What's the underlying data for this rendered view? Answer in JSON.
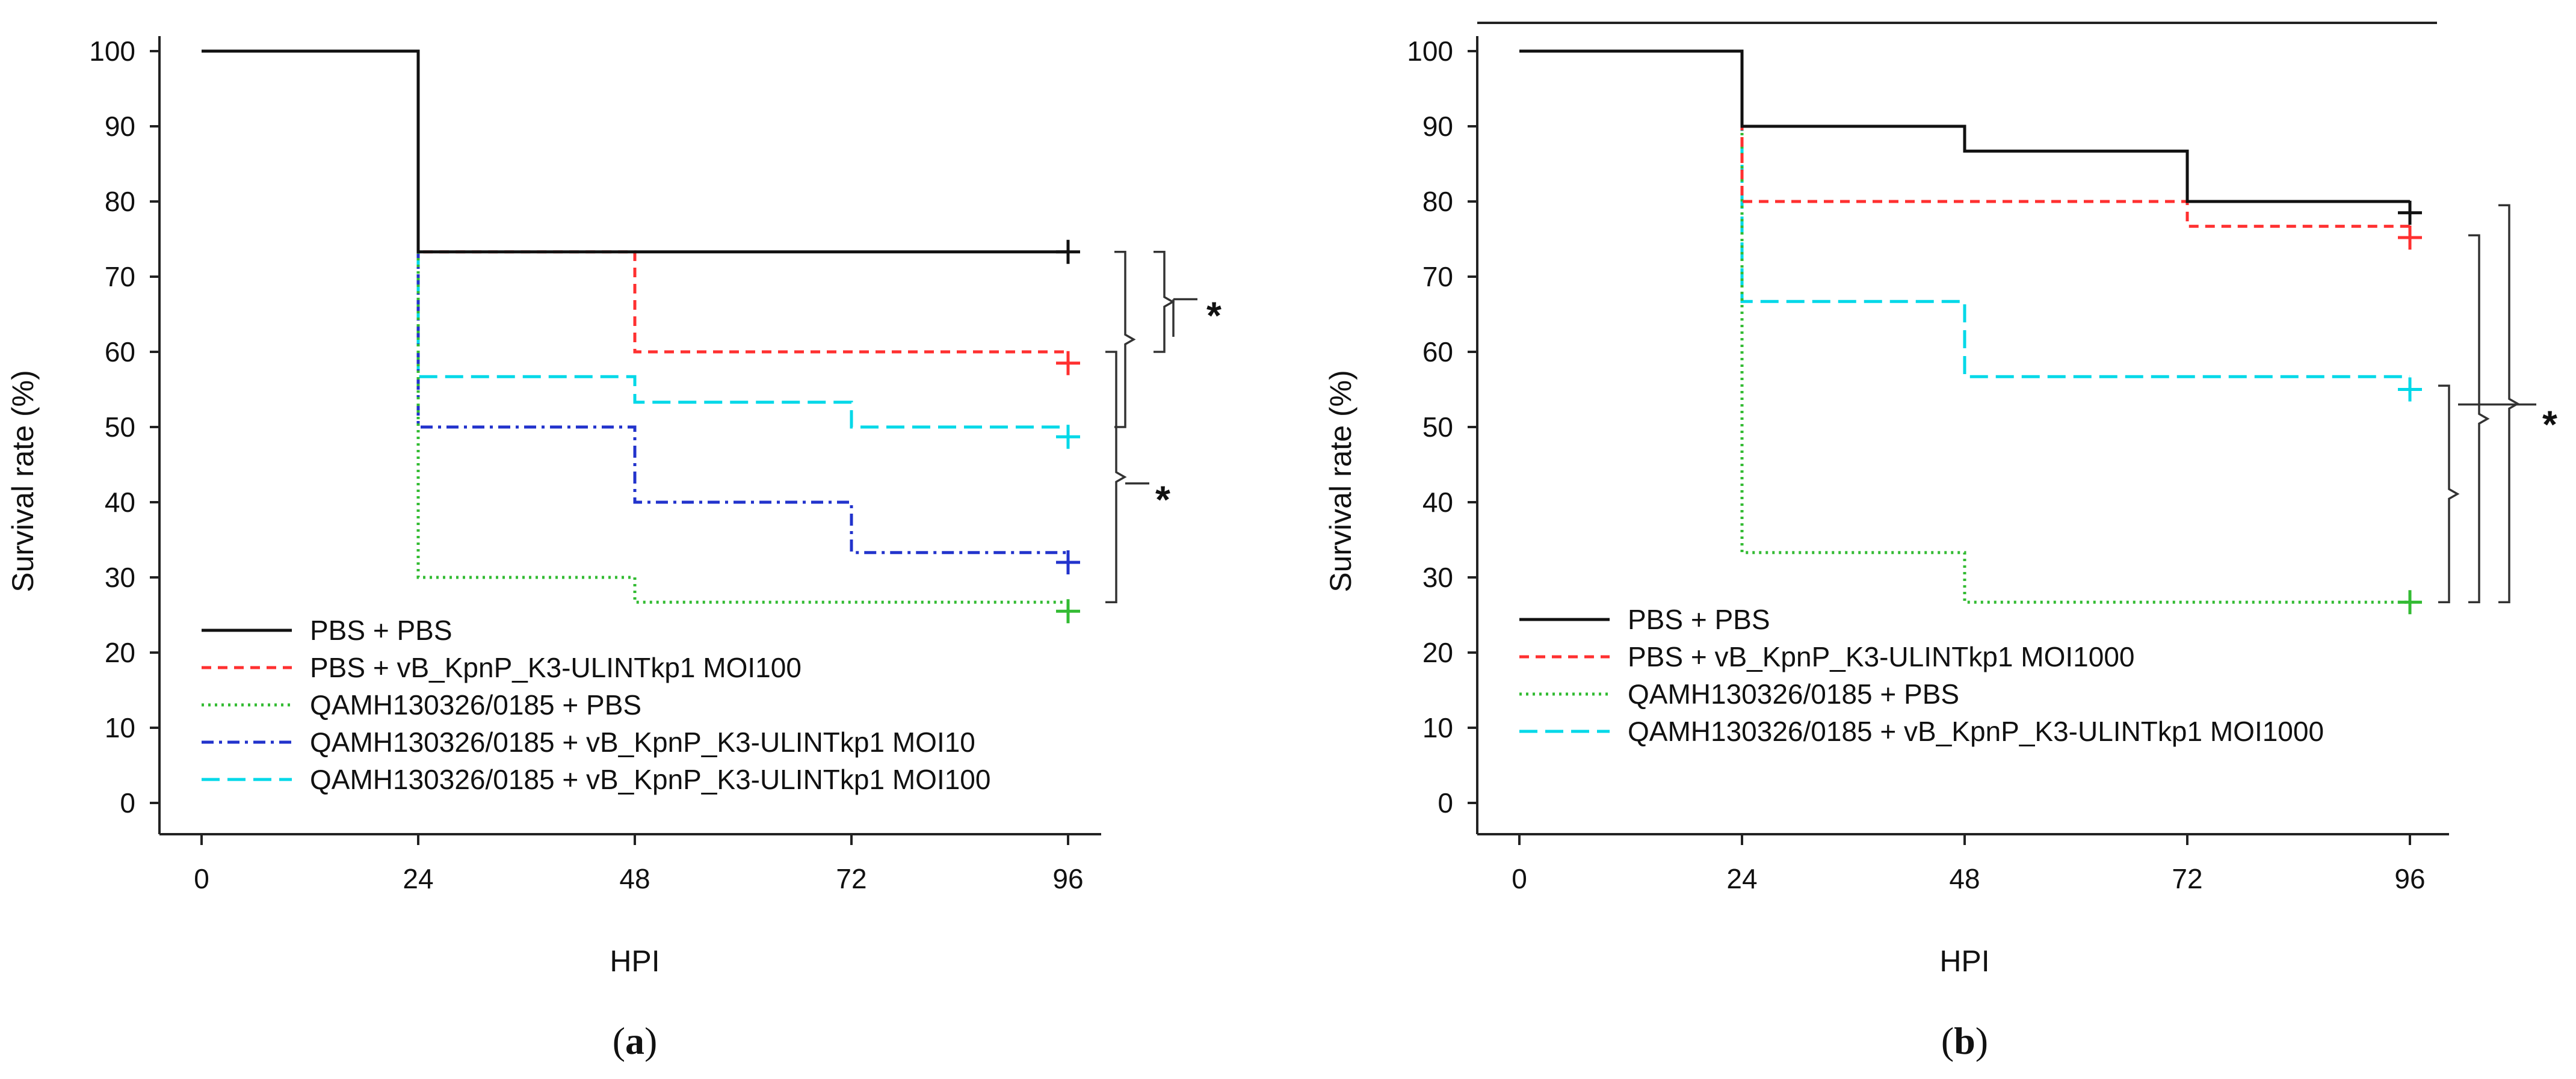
{
  "chart_data": [
    {
      "type": "line",
      "step": true,
      "panel_label_prefix": "(",
      "panel_label_letter": "a",
      "panel_label_suffix": ")",
      "xlabel": "HPI",
      "ylabel": "Survival rate (%)",
      "xticks": [
        0,
        24,
        48,
        72,
        96
      ],
      "yticks": [
        0,
        10,
        20,
        30,
        40,
        50,
        60,
        70,
        80,
        90,
        100
      ],
      "xlim": [
        0,
        96
      ],
      "ylim": [
        0,
        100
      ],
      "significance": [
        "*",
        "*"
      ],
      "series": [
        {
          "name": "PBS + PBS",
          "color": "#111111",
          "dash": "solid",
          "x": [
            0,
            24,
            96
          ],
          "y": [
            100,
            73.3,
            73.3
          ],
          "censor_y": 73.3
        },
        {
          "name": "PBS + vB_KpnP_K3-ULINTkp1 MOI100",
          "color": "#ff3030",
          "dash": "dashed",
          "x": [
            0,
            24,
            48,
            96
          ],
          "y": [
            100,
            73.3,
            60,
            60
          ],
          "censor_y": 58.5
        },
        {
          "name": "QAMH130326/0185 + PBS",
          "color": "#33bb33",
          "dash": "dotted",
          "x": [
            0,
            24,
            48,
            96
          ],
          "y": [
            100,
            30,
            26.7,
            26.7
          ],
          "censor_y": 25.5
        },
        {
          "name": "QAMH130326/0185 + vB_KpnP_K3-ULINTkp1 MOI10",
          "color": "#2233cc",
          "dash": "dashdot",
          "x": [
            0,
            24,
            48,
            72,
            96
          ],
          "y": [
            100,
            50,
            40,
            33.3,
            33.3
          ],
          "censor_y": 32
        },
        {
          "name": "QAMH130326/0185 + vB_KpnP_K3-ULINTkp1 MOI100",
          "color": "#00d8e8",
          "dash": "longdash",
          "x": [
            0,
            24,
            48,
            72,
            96
          ],
          "y": [
            100,
            56.7,
            53.3,
            50,
            50
          ],
          "censor_y": 48.7
        }
      ]
    },
    {
      "type": "line",
      "step": true,
      "panel_label_prefix": "(",
      "panel_label_letter": "b",
      "panel_label_suffix": ")",
      "xlabel": "HPI",
      "ylabel": "Survival rate (%)",
      "xticks": [
        0,
        24,
        48,
        72,
        96
      ],
      "yticks": [
        0,
        10,
        20,
        30,
        40,
        50,
        60,
        70,
        80,
        90,
        100
      ],
      "xlim": [
        0,
        96
      ],
      "ylim": [
        0,
        100
      ],
      "significance": [
        "*"
      ],
      "series": [
        {
          "name": "PBS + PBS",
          "color": "#111111",
          "dash": "solid",
          "x": [
            0,
            24,
            48,
            72,
            96
          ],
          "y": [
            100,
            90,
            86.7,
            80,
            80
          ],
          "censor_y": 78.5
        },
        {
          "name": "PBS + vB_KpnP_K3-ULINTkp1 MOI1000",
          "color": "#ff3030",
          "dash": "dashed",
          "x": [
            0,
            24,
            72,
            96
          ],
          "y": [
            100,
            80,
            76.7,
            76.7
          ],
          "censor_y": 75.2
        },
        {
          "name": "QAMH130326/0185 + PBS",
          "color": "#33bb33",
          "dash": "dotted",
          "x": [
            0,
            24,
            48,
            96
          ],
          "y": [
            100,
            33.3,
            26.7,
            26.7
          ],
          "censor_y": 26.7
        },
        {
          "name": "QAMH130326/0185 + vB_KpnP_K3-ULINTkp1 MOI1000",
          "color": "#00d8e8",
          "dash": "longdash",
          "x": [
            0,
            24,
            48,
            96
          ],
          "y": [
            100,
            66.7,
            56.7,
            56.7
          ],
          "censor_y": 55
        }
      ]
    }
  ]
}
